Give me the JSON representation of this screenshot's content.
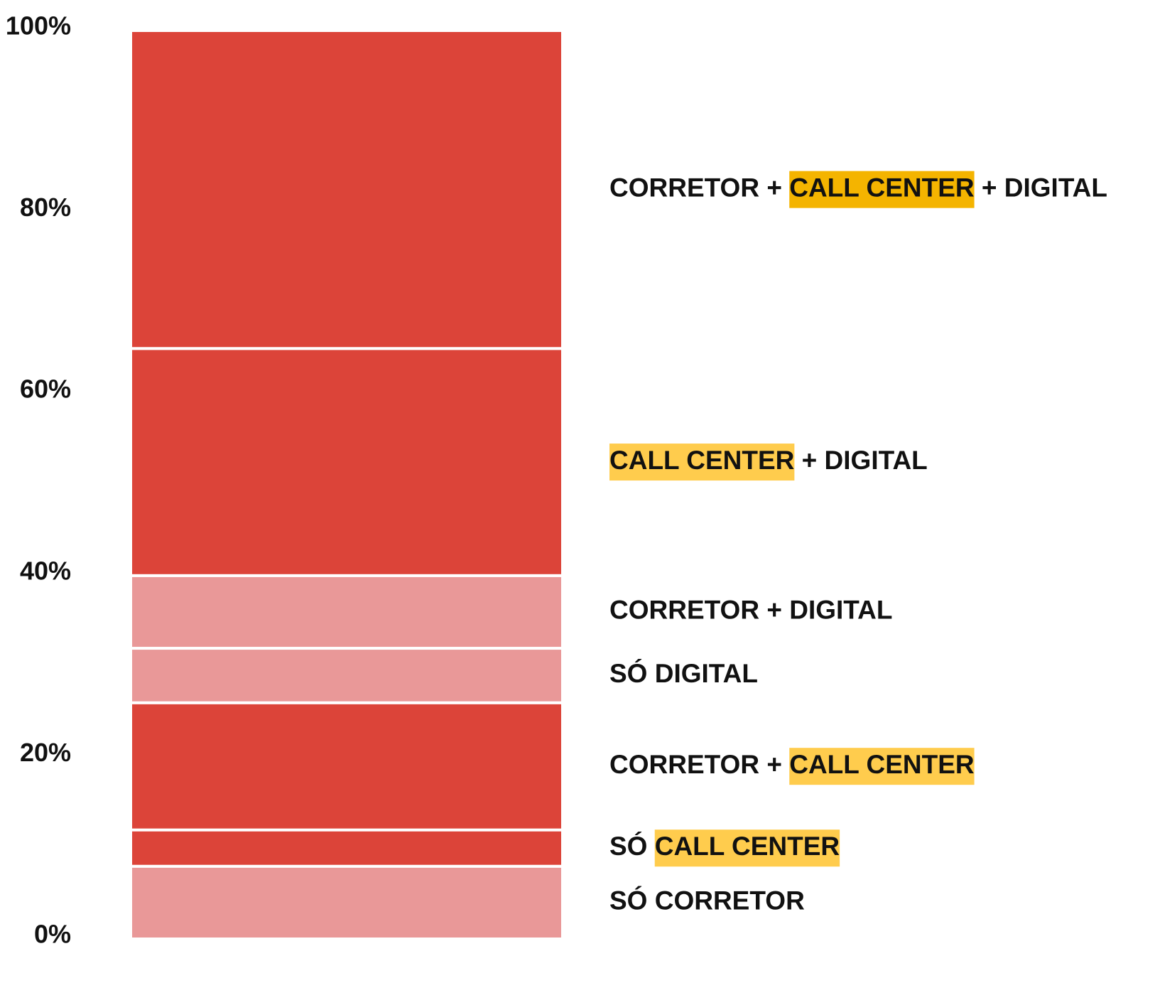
{
  "chart_data": {
    "type": "stacked-bar",
    "categories": [
      "SÓ CORRETOR",
      "SÓ CALL CENTER",
      "CORRETOR + CALL CENTER",
      "SÓ DIGITAL",
      "CORRETOR + DIGITAL",
      "CALL CENTER + DIGITAL",
      "CORRETOR + CALL CENTER + DIGITAL"
    ],
    "values": [
      8,
      4,
      14,
      6,
      8,
      25,
      35
    ],
    "colors": [
      "#e99898",
      "#dc4439",
      "#dc4439",
      "#e99898",
      "#e99898",
      "#dc4439",
      "#dc4439"
    ],
    "highlight": "CALL CENTER",
    "highlight_colors": [
      null,
      "#ffcc4d",
      "#ffcc4d",
      null,
      null,
      "#ffcc4d",
      "#f4b400"
    ],
    "ylim": [
      0,
      100
    ],
    "yticks": [
      {
        "value": 0,
        "label": "0%"
      },
      {
        "value": 20,
        "label": "20%"
      },
      {
        "value": 40,
        "label": "40%"
      },
      {
        "value": 60,
        "label": "60%"
      },
      {
        "value": 80,
        "label": "80%"
      },
      {
        "value": 100,
        "label": "100%"
      }
    ]
  }
}
